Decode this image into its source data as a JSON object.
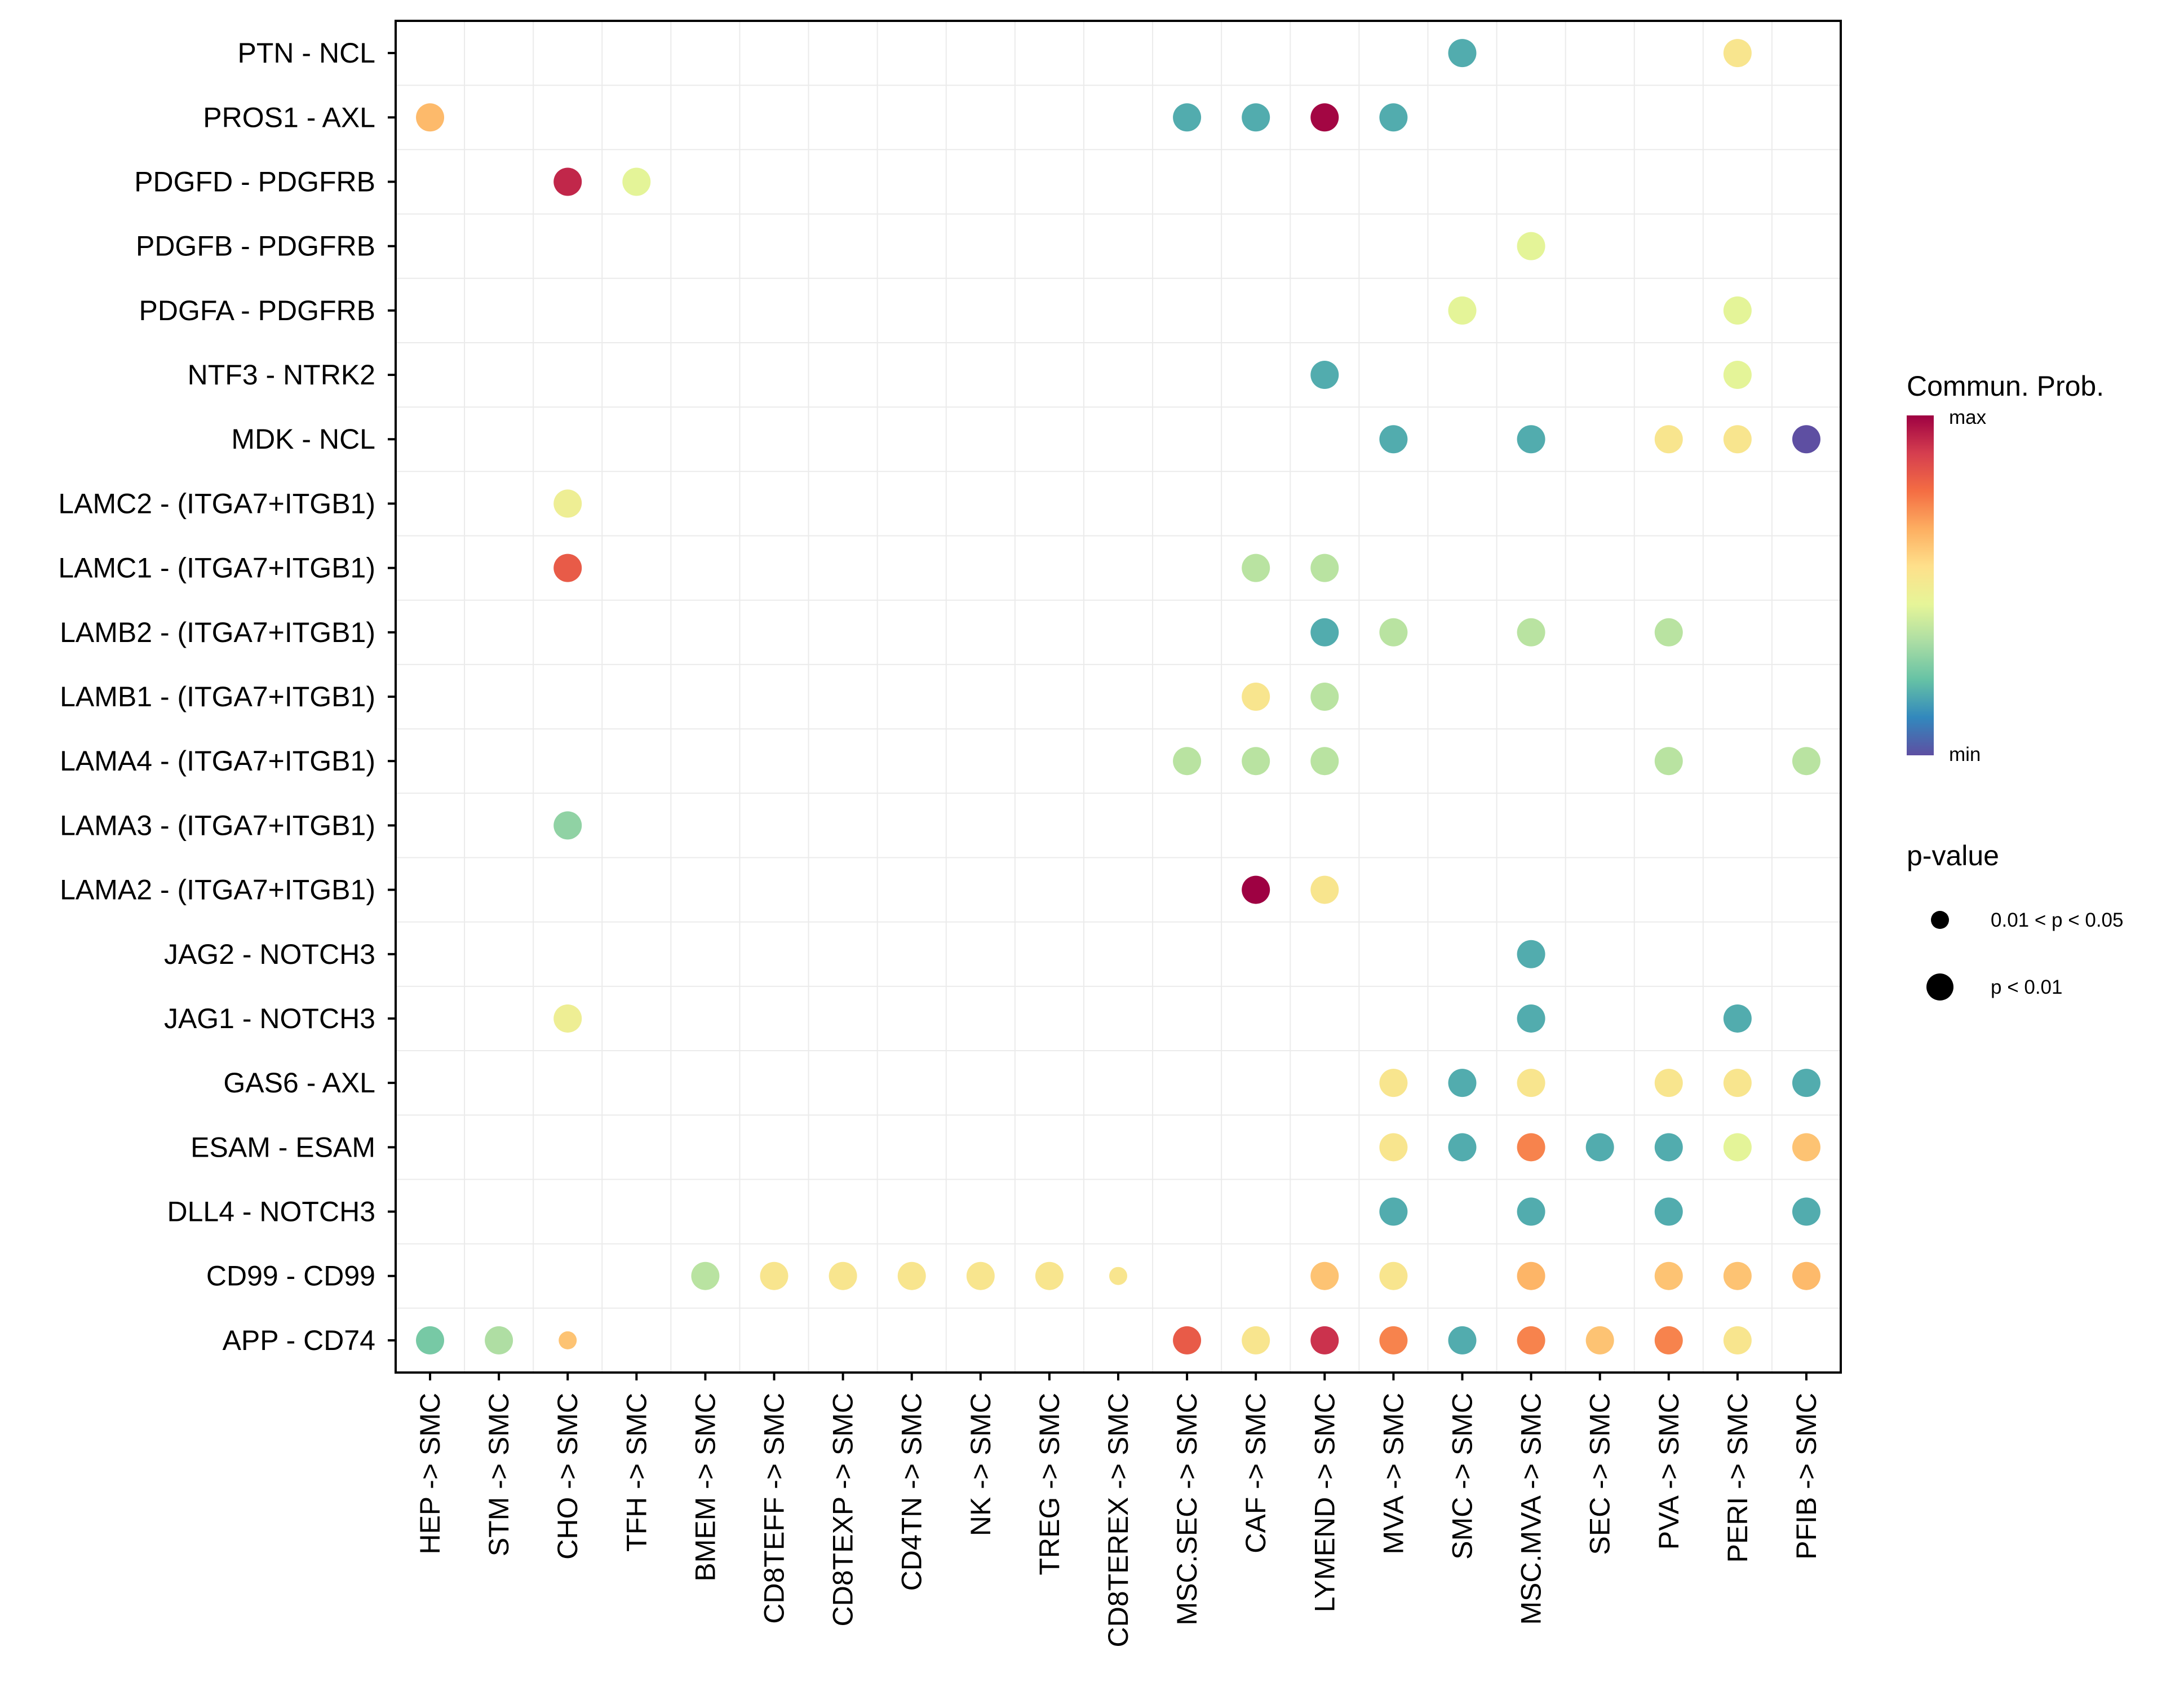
{
  "chart_data": {
    "type": "scatter",
    "subtype": "dot-plot",
    "title": "",
    "xlabel": "",
    "ylabel": "",
    "grid": true,
    "x_categories": [
      "HEP -> SMC",
      "STM -> SMC",
      "CHO -> SMC",
      "TFH -> SMC",
      "BMEM -> SMC",
      "CD8TEFF -> SMC",
      "CD8TEXP -> SMC",
      "CD4TN -> SMC",
      "NK -> SMC",
      "TREG -> SMC",
      "CD8TEREX -> SMC",
      "MSC.SEC -> SMC",
      "CAF -> SMC",
      "LYMEND -> SMC",
      "MVA -> SMC",
      "SMC -> SMC",
      "MSC.MVA -> SMC",
      "SEC -> SMC",
      "PVA -> SMC",
      "PERI -> SMC",
      "PFIB -> SMC"
    ],
    "y_categories": [
      "PTN - NCL",
      "PROS1 - AXL",
      "PDGFD - PDGFRB",
      "PDGFB - PDGFRB",
      "PDGFA - PDGFRB",
      "NTF3 - NTRK2",
      "MDK - NCL",
      "LAMC2 - (ITGA7+ITGB1)",
      "LAMC1 - (ITGA7+ITGB1)",
      "LAMB2 - (ITGA7+ITGB1)",
      "LAMB1 - (ITGA7+ITGB1)",
      "LAMA4 - (ITGA7+ITGB1)",
      "LAMA3 - (ITGA7+ITGB1)",
      "LAMA2 - (ITGA7+ITGB1)",
      "JAG2 - NOTCH3",
      "JAG1 - NOTCH3",
      "GAS6 - AXL",
      "ESAM - ESAM",
      "DLL4 - NOTCH3",
      "CD99 - CD99",
      "APP - CD74"
    ],
    "value_scale": "relative communication probability, 0 = min, 1 = max",
    "points": [
      {
        "y": "PTN - NCL",
        "x": "SMC -> SMC",
        "prob": 0.18,
        "p": "p < 0.01"
      },
      {
        "y": "PTN - NCL",
        "x": "PERI -> SMC",
        "prob": 0.53,
        "p": "p < 0.01"
      },
      {
        "y": "PROS1 - AXL",
        "x": "HEP -> SMC",
        "prob": 0.64,
        "p": "p < 0.01"
      },
      {
        "y": "PROS1 - AXL",
        "x": "MSC.SEC -> SMC",
        "prob": 0.18,
        "p": "p < 0.01"
      },
      {
        "y": "PROS1 - AXL",
        "x": "CAF -> SMC",
        "prob": 0.18,
        "p": "p < 0.01"
      },
      {
        "y": "PROS1 - AXL",
        "x": "LYMEND -> SMC",
        "prob": 0.99,
        "p": "p < 0.01"
      },
      {
        "y": "PROS1 - AXL",
        "x": "MVA -> SMC",
        "prob": 0.18,
        "p": "p < 0.01"
      },
      {
        "y": "PDGFD - PDGFRB",
        "x": "CHO -> SMC",
        "prob": 0.93,
        "p": "p < 0.01"
      },
      {
        "y": "PDGFD - PDGFRB",
        "x": "TFH -> SMC",
        "prob": 0.44,
        "p": "p < 0.01"
      },
      {
        "y": "PDGFB - PDGFRB",
        "x": "MSC.MVA -> SMC",
        "prob": 0.44,
        "p": "p < 0.01"
      },
      {
        "y": "PDGFA - PDGFRB",
        "x": "SMC -> SMC",
        "prob": 0.44,
        "p": "p < 0.01"
      },
      {
        "y": "PDGFA - PDGFRB",
        "x": "PERI -> SMC",
        "prob": 0.44,
        "p": "p < 0.01"
      },
      {
        "y": "NTF3 - NTRK2",
        "x": "LYMEND -> SMC",
        "prob": 0.18,
        "p": "p < 0.01"
      },
      {
        "y": "NTF3 - NTRK2",
        "x": "PERI -> SMC",
        "prob": 0.44,
        "p": "p < 0.01"
      },
      {
        "y": "MDK - NCL",
        "x": "MVA -> SMC",
        "prob": 0.18,
        "p": "p < 0.01"
      },
      {
        "y": "MDK - NCL",
        "x": "MSC.MVA -> SMC",
        "prob": 0.18,
        "p": "p < 0.01"
      },
      {
        "y": "MDK - NCL",
        "x": "PVA -> SMC",
        "prob": 0.53,
        "p": "p < 0.01"
      },
      {
        "y": "MDK - NCL",
        "x": "PERI -> SMC",
        "prob": 0.53,
        "p": "p < 0.01"
      },
      {
        "y": "MDK - NCL",
        "x": "PFIB -> SMC",
        "prob": 0.0,
        "p": "p < 0.01"
      },
      {
        "y": "LAMC2 - (ITGA7+ITGB1)",
        "x": "CHO -> SMC",
        "prob": 0.48,
        "p": "p < 0.01"
      },
      {
        "y": "LAMC1 - (ITGA7+ITGB1)",
        "x": "CHO -> SMC",
        "prob": 0.82,
        "p": "p < 0.01"
      },
      {
        "y": "LAMC1 - (ITGA7+ITGB1)",
        "x": "CAF -> SMC",
        "prob": 0.36,
        "p": "p < 0.01"
      },
      {
        "y": "LAMC1 - (ITGA7+ITGB1)",
        "x": "LYMEND -> SMC",
        "prob": 0.36,
        "p": "p < 0.01"
      },
      {
        "y": "LAMB2 - (ITGA7+ITGB1)",
        "x": "LYMEND -> SMC",
        "prob": 0.18,
        "p": "p < 0.01"
      },
      {
        "y": "LAMB2 - (ITGA7+ITGB1)",
        "x": "MVA -> SMC",
        "prob": 0.36,
        "p": "p < 0.01"
      },
      {
        "y": "LAMB2 - (ITGA7+ITGB1)",
        "x": "MSC.MVA -> SMC",
        "prob": 0.36,
        "p": "p < 0.01"
      },
      {
        "y": "LAMB2 - (ITGA7+ITGB1)",
        "x": "PVA -> SMC",
        "prob": 0.36,
        "p": "p < 0.01"
      },
      {
        "y": "LAMB1 - (ITGA7+ITGB1)",
        "x": "CAF -> SMC",
        "prob": 0.53,
        "p": "p < 0.01"
      },
      {
        "y": "LAMB1 - (ITGA7+ITGB1)",
        "x": "LYMEND -> SMC",
        "prob": 0.36,
        "p": "p < 0.01"
      },
      {
        "y": "LAMA4 - (ITGA7+ITGB1)",
        "x": "MSC.SEC -> SMC",
        "prob": 0.36,
        "p": "p < 0.01"
      },
      {
        "y": "LAMA4 - (ITGA7+ITGB1)",
        "x": "CAF -> SMC",
        "prob": 0.36,
        "p": "p < 0.01"
      },
      {
        "y": "LAMA4 - (ITGA7+ITGB1)",
        "x": "LYMEND -> SMC",
        "prob": 0.36,
        "p": "p < 0.01"
      },
      {
        "y": "LAMA4 - (ITGA7+ITGB1)",
        "x": "PVA -> SMC",
        "prob": 0.36,
        "p": "p < 0.01"
      },
      {
        "y": "LAMA4 - (ITGA7+ITGB1)",
        "x": "PFIB -> SMC",
        "prob": 0.36,
        "p": "p < 0.01"
      },
      {
        "y": "LAMA3 - (ITGA7+ITGB1)",
        "x": "CHO -> SMC",
        "prob": 0.29,
        "p": "p < 0.01"
      },
      {
        "y": "LAMA2 - (ITGA7+ITGB1)",
        "x": "CAF -> SMC",
        "prob": 1.0,
        "p": "p < 0.01"
      },
      {
        "y": "LAMA2 - (ITGA7+ITGB1)",
        "x": "LYMEND -> SMC",
        "prob": 0.53,
        "p": "p < 0.01"
      },
      {
        "y": "JAG2 - NOTCH3",
        "x": "MSC.MVA -> SMC",
        "prob": 0.18,
        "p": "p < 0.01"
      },
      {
        "y": "JAG1 - NOTCH3",
        "x": "CHO -> SMC",
        "prob": 0.48,
        "p": "p < 0.01"
      },
      {
        "y": "JAG1 - NOTCH3",
        "x": "MSC.MVA -> SMC",
        "prob": 0.18,
        "p": "p < 0.01"
      },
      {
        "y": "JAG1 - NOTCH3",
        "x": "PERI -> SMC",
        "prob": 0.18,
        "p": "p < 0.01"
      },
      {
        "y": "GAS6 - AXL",
        "x": "MVA -> SMC",
        "prob": 0.53,
        "p": "p < 0.01"
      },
      {
        "y": "GAS6 - AXL",
        "x": "SMC -> SMC",
        "prob": 0.18,
        "p": "p < 0.01"
      },
      {
        "y": "GAS6 - AXL",
        "x": "MSC.MVA -> SMC",
        "prob": 0.53,
        "p": "p < 0.01"
      },
      {
        "y": "GAS6 - AXL",
        "x": "PVA -> SMC",
        "prob": 0.53,
        "p": "p < 0.01"
      },
      {
        "y": "GAS6 - AXL",
        "x": "PERI -> SMC",
        "prob": 0.53,
        "p": "p < 0.01"
      },
      {
        "y": "GAS6 - AXL",
        "x": "PFIB -> SMC",
        "prob": 0.18,
        "p": "p < 0.01"
      },
      {
        "y": "ESAM - ESAM",
        "x": "MVA -> SMC",
        "prob": 0.53,
        "p": "p < 0.01"
      },
      {
        "y": "ESAM - ESAM",
        "x": "SMC -> SMC",
        "prob": 0.18,
        "p": "p < 0.01"
      },
      {
        "y": "ESAM - ESAM",
        "x": "MSC.MVA -> SMC",
        "prob": 0.74,
        "p": "p < 0.01"
      },
      {
        "y": "ESAM - ESAM",
        "x": "SEC -> SMC",
        "prob": 0.18,
        "p": "p < 0.01"
      },
      {
        "y": "ESAM - ESAM",
        "x": "PVA -> SMC",
        "prob": 0.18,
        "p": "p < 0.01"
      },
      {
        "y": "ESAM - ESAM",
        "x": "PERI -> SMC",
        "prob": 0.44,
        "p": "p < 0.01"
      },
      {
        "y": "ESAM - ESAM",
        "x": "PFIB -> SMC",
        "prob": 0.62,
        "p": "p < 0.01"
      },
      {
        "y": "DLL4 - NOTCH3",
        "x": "MVA -> SMC",
        "prob": 0.18,
        "p": "p < 0.01"
      },
      {
        "y": "DLL4 - NOTCH3",
        "x": "MSC.MVA -> SMC",
        "prob": 0.18,
        "p": "p < 0.01"
      },
      {
        "y": "DLL4 - NOTCH3",
        "x": "PVA -> SMC",
        "prob": 0.18,
        "p": "p < 0.01"
      },
      {
        "y": "DLL4 - NOTCH3",
        "x": "PFIB -> SMC",
        "prob": 0.18,
        "p": "p < 0.01"
      },
      {
        "y": "CD99 - CD99",
        "x": "BMEM -> SMC",
        "prob": 0.36,
        "p": "p < 0.01"
      },
      {
        "y": "CD99 - CD99",
        "x": "CD8TEFF -> SMC",
        "prob": 0.53,
        "p": "p < 0.01"
      },
      {
        "y": "CD99 - CD99",
        "x": "CD8TEXP -> SMC",
        "prob": 0.53,
        "p": "p < 0.01"
      },
      {
        "y": "CD99 - CD99",
        "x": "CD4TN -> SMC",
        "prob": 0.53,
        "p": "p < 0.01"
      },
      {
        "y": "CD99 - CD99",
        "x": "NK -> SMC",
        "prob": 0.53,
        "p": "p < 0.01"
      },
      {
        "y": "CD99 - CD99",
        "x": "TREG -> SMC",
        "prob": 0.53,
        "p": "p < 0.01"
      },
      {
        "y": "CD99 - CD99",
        "x": "CD8TEREX -> SMC",
        "prob": 0.53,
        "p": "0.01 < p < 0.05"
      },
      {
        "y": "CD99 - CD99",
        "x": "LYMEND -> SMC",
        "prob": 0.62,
        "p": "p < 0.01"
      },
      {
        "y": "CD99 - CD99",
        "x": "MVA -> SMC",
        "prob": 0.53,
        "p": "p < 0.01"
      },
      {
        "y": "CD99 - CD99",
        "x": "MSC.MVA -> SMC",
        "prob": 0.65,
        "p": "p < 0.01"
      },
      {
        "y": "CD99 - CD99",
        "x": "PVA -> SMC",
        "prob": 0.62,
        "p": "p < 0.01"
      },
      {
        "y": "CD99 - CD99",
        "x": "PERI -> SMC",
        "prob": 0.62,
        "p": "p < 0.01"
      },
      {
        "y": "CD99 - CD99",
        "x": "PFIB -> SMC",
        "prob": 0.64,
        "p": "p < 0.01"
      },
      {
        "y": "APP - CD74",
        "x": "HEP -> SMC",
        "prob": 0.25,
        "p": "p < 0.01"
      },
      {
        "y": "APP - CD74",
        "x": "STM -> SMC",
        "prob": 0.34,
        "p": "p < 0.01"
      },
      {
        "y": "APP - CD74",
        "x": "CHO -> SMC",
        "prob": 0.62,
        "p": "0.01 < p < 0.05"
      },
      {
        "y": "APP - CD74",
        "x": "MSC.SEC -> SMC",
        "prob": 0.82,
        "p": "p < 0.01"
      },
      {
        "y": "APP - CD74",
        "x": "CAF -> SMC",
        "prob": 0.53,
        "p": "p < 0.01"
      },
      {
        "y": "APP - CD74",
        "x": "LYMEND -> SMC",
        "prob": 0.91,
        "p": "p < 0.01"
      },
      {
        "y": "APP - CD74",
        "x": "MVA -> SMC",
        "prob": 0.74,
        "p": "p < 0.01"
      },
      {
        "y": "APP - CD74",
        "x": "SMC -> SMC",
        "prob": 0.18,
        "p": "p < 0.01"
      },
      {
        "y": "APP - CD74",
        "x": "MSC.MVA -> SMC",
        "prob": 0.74,
        "p": "p < 0.01"
      },
      {
        "y": "APP - CD74",
        "x": "SEC -> SMC",
        "prob": 0.62,
        "p": "p < 0.01"
      },
      {
        "y": "APP - CD74",
        "x": "PVA -> SMC",
        "prob": 0.74,
        "p": "p < 0.01"
      },
      {
        "y": "APP - CD74",
        "x": "PERI -> SMC",
        "prob": 0.53,
        "p": "p < 0.01"
      }
    ],
    "color_legend": {
      "title": "Commun. Prob.",
      "max_label": "max",
      "min_label": "min",
      "palette": [
        "#5E4FA2",
        "#3288BD",
        "#66C2A5",
        "#ABDDA4",
        "#E6F598",
        "#FEE08B",
        "#FDAE61",
        "#F46D43",
        "#D53E4F",
        "#9E0142"
      ]
    },
    "size_legend": {
      "title": "p-value",
      "entries": [
        {
          "label": "0.01 < p < 0.05",
          "level": "small"
        },
        {
          "label": "p < 0.01",
          "level": "large"
        }
      ]
    },
    "legend_position": "right"
  }
}
